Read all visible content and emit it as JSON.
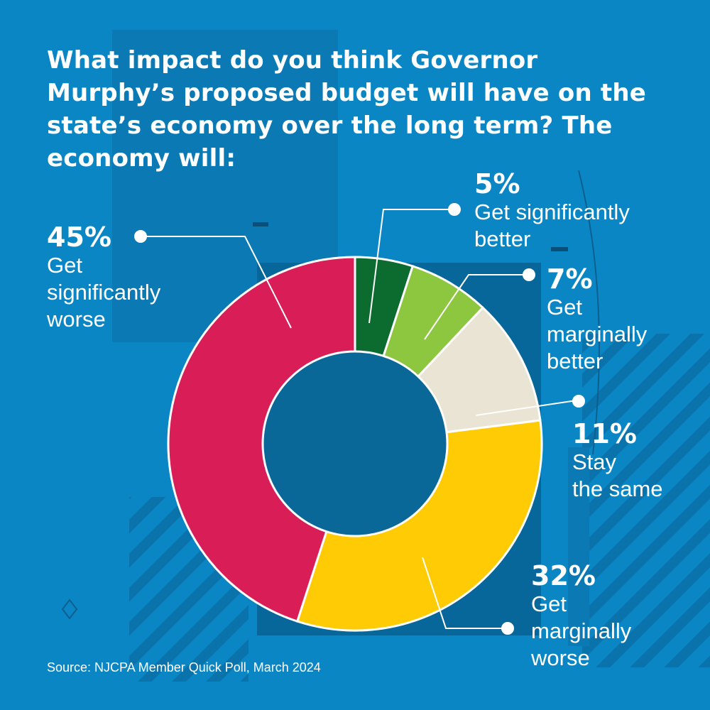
{
  "title": "What impact do you think Governor Murphy’s proposed budget will have on the state’s economy over the long term? The economy will:",
  "source": "Source: NJCPA Member Quick Poll, March 2024",
  "colors": {
    "background": "#0b86c4",
    "panel": "#08679a",
    "hole": "#0a6898",
    "significantly_better": "#0c6b2e",
    "marginally_better": "#8dc63f",
    "stay_same": "#e9e4d4",
    "marginally_worse": "#ffcb05",
    "significantly_worse": "#d91e57"
  },
  "chart_data": {
    "type": "pie",
    "variant": "donut",
    "start": "top",
    "direction": "clockwise",
    "slices": [
      {
        "label": "Get significantly better",
        "pct_label": "5%",
        "value": 5,
        "color": "#0c6b2e"
      },
      {
        "label": "Get marginally better",
        "pct_label": "7%",
        "value": 7,
        "color": "#8dc63f"
      },
      {
        "label": "Stay the same",
        "pct_label": "11%",
        "value": 11,
        "color": "#e9e4d4"
      },
      {
        "label": "Get marginally worse",
        "pct_label": "32%",
        "value": 32,
        "color": "#ffcb05"
      },
      {
        "label": "Get significantly worse",
        "pct_label": "45%",
        "value": 45,
        "color": "#d91e57"
      }
    ]
  },
  "labels": {
    "sig_better": {
      "pct": "5%",
      "text": "Get significantly\nbetter"
    },
    "marg_better": {
      "pct": "7%",
      "text": "Get\nmarginally\nbetter"
    },
    "same": {
      "pct": "11%",
      "text": "Stay\nthe same"
    },
    "marg_worse": {
      "pct": "32%",
      "text": "Get\nmarginally\nworse"
    },
    "sig_worse": {
      "pct": "45%",
      "text": "Get\nsignificantly\nworse"
    }
  }
}
